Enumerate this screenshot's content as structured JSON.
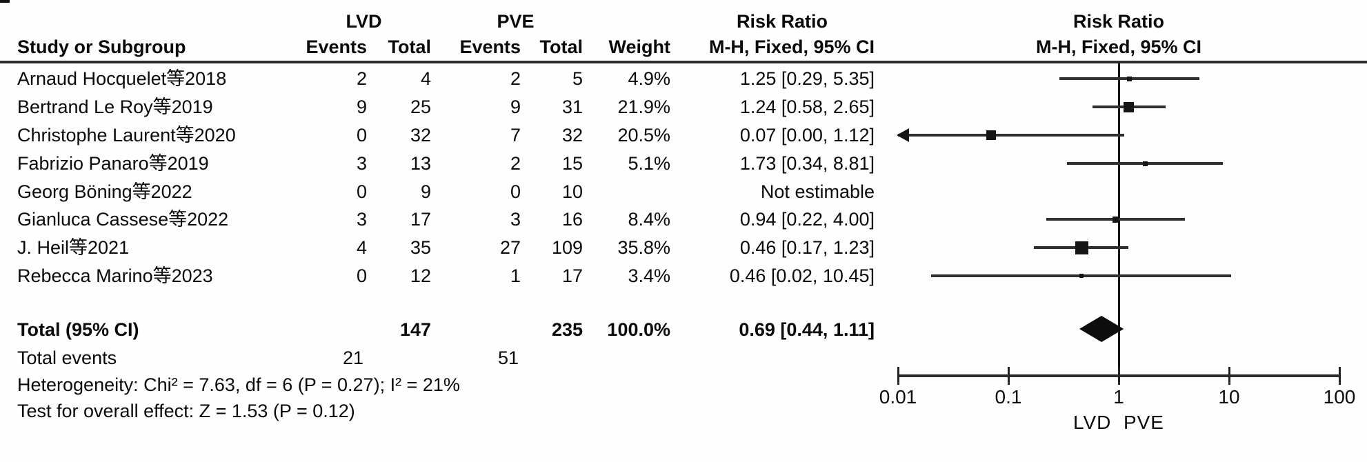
{
  "headers": {
    "study": "Study or Subgroup",
    "group1": "LVD",
    "group2": "PVE",
    "events": "Events",
    "total": "Total",
    "weight": "Weight",
    "risk_ratio": "Risk Ratio",
    "method": "M-H, Fixed, 95% CI"
  },
  "footer": {
    "total_label": "Total (95% CI)",
    "total_t1": "147",
    "total_t2": "235",
    "total_weight": "100.0%",
    "total_rr_text": "0.69 [0.44, 1.11]",
    "total_events_label": "Total events",
    "total_events_1": "21",
    "total_events_2": "51",
    "heterogeneity": "Heterogeneity: Chi² = 7.63, df = 6 (P = 0.27); I² = 21%",
    "overall_effect": "Test for overall effect: Z = 1.53 (P = 0.12)"
  },
  "chart_data": {
    "type": "forest",
    "scale": "log10",
    "x_ticks": [
      0.01,
      0.1,
      1,
      10,
      100
    ],
    "x_tick_labels": [
      "0.01",
      "0.1",
      "1",
      "10",
      "100"
    ],
    "axis_footer_left": "LVD",
    "axis_footer_right": "PVE",
    "effect_measure": "Risk Ratio",
    "model": "M-H, Fixed, 95% CI",
    "studies": [
      {
        "study": "Arnaud Hocquelet等2018",
        "events1": "2",
        "total1": "4",
        "events2": "2",
        "total2": "5",
        "weight_text": "4.9%",
        "weight": 4.9,
        "rr_text": "1.25 [0.29, 5.35]",
        "est": 1.25,
        "lo": 0.29,
        "hi": 5.35,
        "lo_offscale": false
      },
      {
        "study": "Bertrand Le Roy等2019",
        "events1": "9",
        "total1": "25",
        "events2": "9",
        "total2": "31",
        "weight_text": "21.9%",
        "weight": 21.9,
        "rr_text": "1.24 [0.58, 2.65]",
        "est": 1.24,
        "lo": 0.58,
        "hi": 2.65,
        "lo_offscale": false
      },
      {
        "study": "Christophe Laurent等2020",
        "events1": "0",
        "total1": "32",
        "events2": "7",
        "total2": "32",
        "weight_text": "20.5%",
        "weight": 20.5,
        "rr_text": "0.07 [0.00, 1.12]",
        "est": 0.07,
        "lo": 0.0,
        "hi": 1.12,
        "lo_offscale": true
      },
      {
        "study": "Fabrizio Panaro等2019",
        "events1": "3",
        "total1": "13",
        "events2": "2",
        "total2": "15",
        "weight_text": "5.1%",
        "weight": 5.1,
        "rr_text": "1.73 [0.34, 8.81]",
        "est": 1.73,
        "lo": 0.34,
        "hi": 8.81,
        "lo_offscale": false
      },
      {
        "study": "Georg Böning等2022",
        "events1": "0",
        "total1": "9",
        "events2": "0",
        "total2": "10",
        "weight_text": "",
        "weight": 0,
        "rr_text": "Not estimable",
        "est": null,
        "lo": null,
        "hi": null,
        "lo_offscale": false
      },
      {
        "study": "Gianluca Cassese等2022",
        "events1": "3",
        "total1": "17",
        "events2": "3",
        "total2": "16",
        "weight_text": "8.4%",
        "weight": 8.4,
        "rr_text": "0.94 [0.22, 4.00]",
        "est": 0.94,
        "lo": 0.22,
        "hi": 4.0,
        "lo_offscale": false
      },
      {
        "study": "J. Heil等2021",
        "events1": "4",
        "total1": "35",
        "events2": "27",
        "total2": "109",
        "weight_text": "35.8%",
        "weight": 35.8,
        "rr_text": "0.46 [0.17, 1.23]",
        "est": 0.46,
        "lo": 0.17,
        "hi": 1.23,
        "lo_offscale": false
      },
      {
        "study": "Rebecca Marino等2023",
        "events1": "0",
        "total1": "12",
        "events2": "1",
        "total2": "17",
        "weight_text": "3.4%",
        "weight": 3.4,
        "rr_text": "0.46 [0.02, 10.45]",
        "est": 0.46,
        "lo": 0.02,
        "hi": 10.45,
        "lo_offscale": false
      }
    ],
    "total": {
      "est": 0.69,
      "lo": 0.44,
      "hi": 1.11
    }
  }
}
